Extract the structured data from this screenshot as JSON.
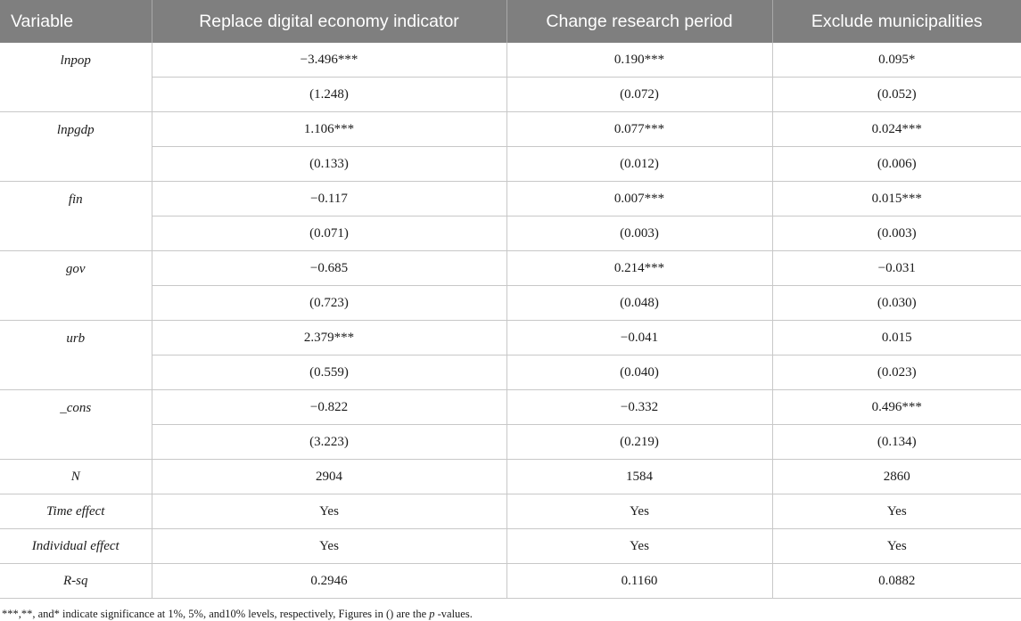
{
  "header": [
    "Variable",
    "Replace digital economy indicator",
    "Change research period",
    "Exclude municipalities"
  ],
  "paired_rows": [
    {
      "var": "lnpop",
      "coef": [
        "−3.496***",
        "0.190***",
        "0.095*"
      ],
      "se": [
        "(1.248)",
        "(0.072)",
        "(0.052)"
      ]
    },
    {
      "var": "lnpgdp",
      "coef": [
        "1.106***",
        "0.077***",
        "0.024***"
      ],
      "se": [
        "(0.133)",
        "(0.012)",
        "(0.006)"
      ]
    },
    {
      "var": "fin",
      "coef": [
        "−0.117",
        "0.007***",
        "0.015***"
      ],
      "se": [
        "(0.071)",
        "(0.003)",
        "(0.003)"
      ]
    },
    {
      "var": "gov",
      "coef": [
        "−0.685",
        "0.214***",
        "−0.031"
      ],
      "se": [
        "(0.723)",
        "(0.048)",
        "(0.030)"
      ]
    },
    {
      "var": "urb",
      "coef": [
        "2.379***",
        "−0.041",
        "0.015"
      ],
      "se": [
        "(0.559)",
        "(0.040)",
        "(0.023)"
      ]
    },
    {
      "var": "_cons",
      "coef": [
        "−0.822",
        "−0.332",
        "0.496***"
      ],
      "se": [
        "(3.223)",
        "(0.219)",
        "(0.134)"
      ]
    }
  ],
  "single_rows": [
    {
      "var": "N",
      "vals": [
        "2904",
        "1584",
        "2860"
      ]
    },
    {
      "var": "Time effect",
      "vals": [
        "Yes",
        "Yes",
        "Yes"
      ]
    },
    {
      "var": "Individual effect",
      "vals": [
        "Yes",
        "Yes",
        "Yes"
      ]
    },
    {
      "var": "R-sq",
      "vals": [
        "0.2946",
        "0.1160",
        "0.0882"
      ]
    }
  ],
  "note": {
    "before": "***,**, and* indicate significance at 1%, 5%, and10% levels, respectively, Figures in () are the ",
    "italic": "p",
    "after": " -values."
  }
}
